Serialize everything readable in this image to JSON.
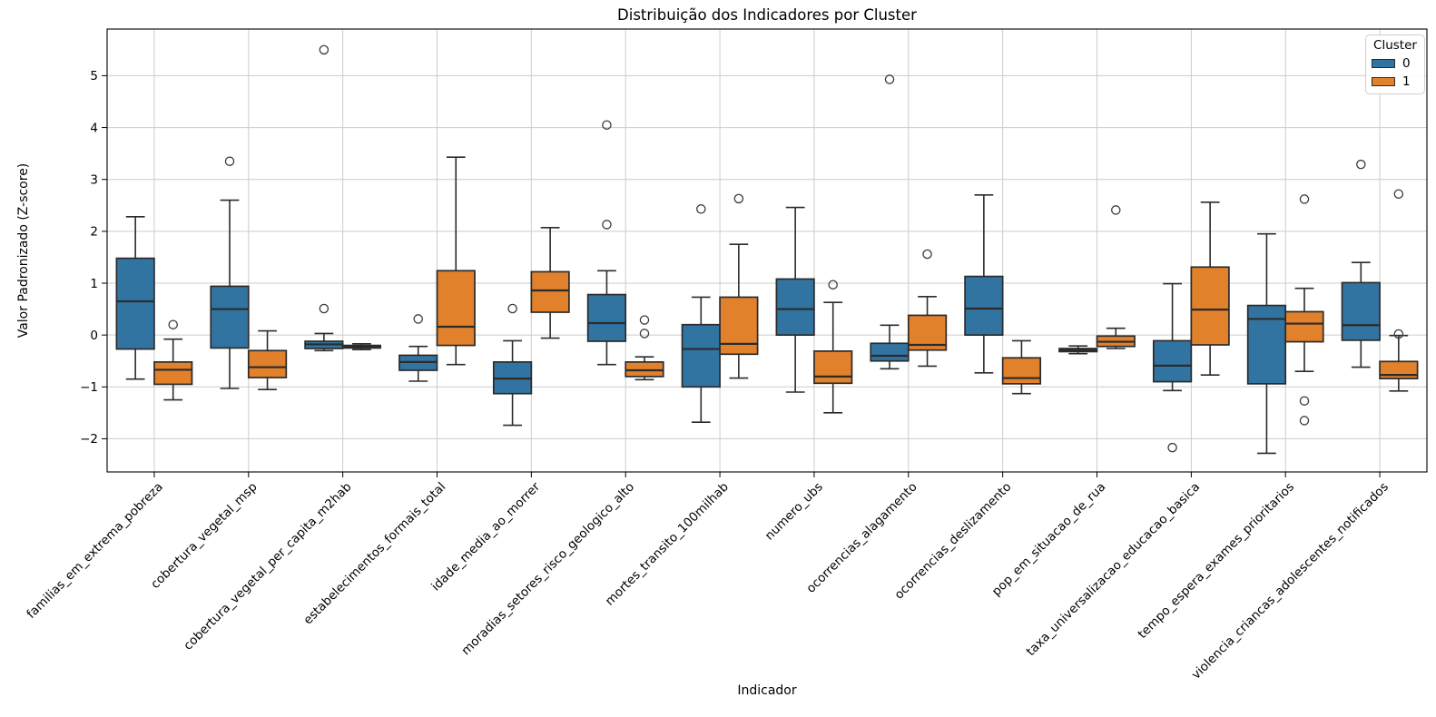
{
  "chart_data": {
    "type": "boxplot",
    "title": "Distribuição dos Indicadores por Cluster",
    "xlabel": "Indicador",
    "ylabel": "Valor Padronizado (Z-score)",
    "grid": true,
    "ylim": [
      -2.64,
      5.9
    ],
    "y_ticks": [
      5,
      4,
      3,
      2,
      1,
      0,
      -1,
      -2
    ],
    "legend": {
      "title": "Cluster",
      "position": "upper right"
    },
    "categories": [
      "familias_em_extrema_pobreza",
      "cobertura_vegetal_msp",
      "cobertura_vegetal_per_capita_m2hab",
      "estabelecimentos_formais_total",
      "idade_media_ao_morrer",
      "moradias_setores_risco_geologico_alto",
      "mortes_transito_100milhab",
      "numero_ubs",
      "ocorrencias_alagamento",
      "ocorrencias_deslizamento",
      "pop_em_situacao_de_rua",
      "taxa_universalizacao_educacao_basica",
      "tempo_espera_exames_prioritarios",
      "violencia_criancas_adolescentes_notificados"
    ],
    "series": [
      {
        "name": "0",
        "color": "#3274a1",
        "edge_color": "#2b2b2b",
        "boxes": [
          {
            "whislo": -0.85,
            "q1": -0.27,
            "med": 0.65,
            "q3": 1.48,
            "whishi": 2.28,
            "outliers": []
          },
          {
            "whislo": -1.03,
            "q1": -0.25,
            "med": 0.5,
            "q3": 0.94,
            "whishi": 2.6,
            "outliers": [
              3.35
            ]
          },
          {
            "whislo": -0.3,
            "q1": -0.26,
            "med": -0.18,
            "q3": -0.12,
            "whishi": 0.03,
            "outliers": [
              5.5,
              0.51
            ]
          },
          {
            "whislo": -0.89,
            "q1": -0.68,
            "med": -0.52,
            "q3": -0.39,
            "whishi": -0.22,
            "outliers": [
              0.31
            ]
          },
          {
            "whislo": -1.74,
            "q1": -1.13,
            "med": -0.84,
            "q3": -0.52,
            "whishi": -0.11,
            "outliers": [
              0.51
            ]
          },
          {
            "whislo": -0.57,
            "q1": -0.12,
            "med": 0.23,
            "q3": 0.78,
            "whishi": 1.24,
            "outliers": [
              4.05,
              2.13
            ]
          },
          {
            "whislo": -1.68,
            "q1": -1.0,
            "med": -0.27,
            "q3": 0.2,
            "whishi": 0.73,
            "outliers": [
              2.43
            ]
          },
          {
            "whislo": -1.1,
            "q1": 0.0,
            "med": 0.5,
            "q3": 1.08,
            "whishi": 2.46,
            "outliers": []
          },
          {
            "whislo": -0.65,
            "q1": -0.5,
            "med": -0.4,
            "q3": -0.16,
            "whishi": 0.19,
            "outliers": [
              4.93
            ]
          },
          {
            "whislo": -0.73,
            "q1": 0.0,
            "med": 0.51,
            "q3": 1.13,
            "whishi": 2.7,
            "outliers": []
          },
          {
            "whislo": -0.36,
            "q1": -0.32,
            "med": -0.29,
            "q3": -0.26,
            "whishi": -0.21,
            "outliers": []
          },
          {
            "whislo": -1.07,
            "q1": -0.9,
            "med": -0.59,
            "q3": -0.11,
            "whishi": 0.99,
            "outliers": [
              -2.17
            ]
          },
          {
            "whislo": -2.28,
            "q1": -0.94,
            "med": 0.31,
            "q3": 0.57,
            "whishi": 1.95,
            "outliers": []
          },
          {
            "whislo": -0.62,
            "q1": -0.1,
            "med": 0.19,
            "q3": 1.01,
            "whishi": 1.4,
            "outliers": [
              3.29
            ]
          }
        ]
      },
      {
        "name": "1",
        "color": "#e1812c",
        "edge_color": "#2b2b2b",
        "boxes": [
          {
            "whislo": -1.25,
            "q1": -0.95,
            "med": -0.67,
            "q3": -0.52,
            "whishi": -0.08,
            "outliers": [
              0.2
            ]
          },
          {
            "whislo": -1.05,
            "q1": -0.82,
            "med": -0.62,
            "q3": -0.3,
            "whishi": 0.08,
            "outliers": []
          },
          {
            "whislo": -0.28,
            "q1": -0.25,
            "med": -0.23,
            "q3": -0.2,
            "whishi": -0.17,
            "outliers": []
          },
          {
            "whislo": -0.57,
            "q1": -0.2,
            "med": 0.16,
            "q3": 1.24,
            "whishi": 3.43,
            "outliers": []
          },
          {
            "whislo": -0.06,
            "q1": 0.44,
            "med": 0.86,
            "q3": 1.22,
            "whishi": 2.07,
            "outliers": []
          },
          {
            "whislo": -0.86,
            "q1": -0.8,
            "med": -0.68,
            "q3": -0.52,
            "whishi": -0.42,
            "outliers": [
              0.29,
              0.03
            ]
          },
          {
            "whislo": -0.83,
            "q1": -0.37,
            "med": -0.17,
            "q3": 0.73,
            "whishi": 1.75,
            "outliers": [
              2.63
            ]
          },
          {
            "whislo": -1.5,
            "q1": -0.93,
            "med": -0.8,
            "q3": -0.31,
            "whishi": 0.63,
            "outliers": [
              0.97
            ]
          },
          {
            "whislo": -0.6,
            "q1": -0.29,
            "med": -0.19,
            "q3": 0.38,
            "whishi": 0.74,
            "outliers": [
              1.56
            ]
          },
          {
            "whislo": -1.13,
            "q1": -0.94,
            "med": -0.83,
            "q3": -0.44,
            "whishi": -0.11,
            "outliers": []
          },
          {
            "whislo": -0.26,
            "q1": -0.22,
            "med": -0.13,
            "q3": -0.02,
            "whishi": 0.13,
            "outliers": [
              2.41
            ]
          },
          {
            "whislo": -0.77,
            "q1": -0.19,
            "med": 0.49,
            "q3": 1.31,
            "whishi": 2.56,
            "outliers": []
          },
          {
            "whislo": -0.7,
            "q1": -0.13,
            "med": 0.22,
            "q3": 0.45,
            "whishi": 0.9,
            "outliers": [
              2.62,
              -1.27,
              -1.65
            ]
          },
          {
            "whislo": -1.08,
            "q1": -0.84,
            "med": -0.77,
            "q3": -0.51,
            "whishi": -0.01,
            "outliers": [
              2.72,
              0.02
            ]
          }
        ]
      }
    ]
  }
}
